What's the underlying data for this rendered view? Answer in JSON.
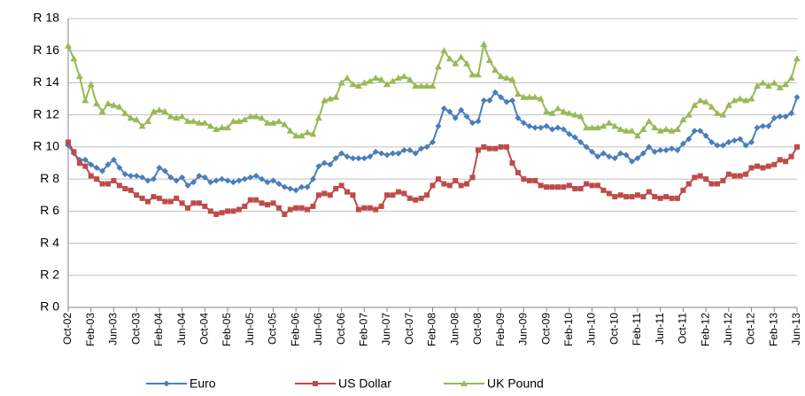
{
  "chart_data": {
    "type": "line",
    "categories": [
      "Oct-02",
      null,
      null,
      null,
      "Feb-03",
      null,
      null,
      null,
      "Jun-03",
      null,
      null,
      null,
      "Oct-03",
      null,
      null,
      null,
      "Feb-04",
      null,
      null,
      null,
      "Jun-04",
      null,
      null,
      null,
      "Oct-04",
      null,
      null,
      null,
      "Feb-05",
      null,
      null,
      null,
      "Jun-05",
      null,
      null,
      null,
      "Oct-05",
      null,
      null,
      null,
      "Feb-06",
      null,
      null,
      null,
      "Jun-06",
      null,
      null,
      null,
      "Oct-06",
      null,
      null,
      null,
      "Feb-07",
      null,
      null,
      null,
      "Jun-07",
      null,
      null,
      null,
      "Oct-07",
      null,
      null,
      null,
      "Feb-08",
      null,
      null,
      null,
      "Jun-08",
      null,
      null,
      null,
      "Oct-08",
      null,
      null,
      null,
      "Feb-09",
      null,
      null,
      null,
      "Jun-09",
      null,
      null,
      null,
      "Oct-09",
      null,
      null,
      null,
      "Feb-10",
      null,
      null,
      null,
      "Jun-10",
      null,
      null,
      null,
      "Oct-10",
      null,
      null,
      null,
      "Feb-11",
      null,
      null,
      null,
      "Jun-11",
      null,
      null,
      null,
      "Oct-11",
      null,
      null,
      null,
      "Feb-12",
      null,
      null,
      null,
      "Jun-12",
      null,
      null,
      null,
      "Oct-12",
      null,
      null,
      null,
      "Feb-13",
      null,
      null,
      null,
      "Jun-13"
    ],
    "series": [
      {
        "name": "Euro",
        "color": "#4a7ebb",
        "marker": "diamond",
        "values": [
          10.1,
          9.6,
          9.2,
          9.2,
          8.9,
          8.7,
          8.5,
          8.9,
          9.2,
          8.7,
          8.3,
          8.2,
          8.2,
          8.1,
          7.9,
          8.0,
          8.7,
          8.5,
          8.1,
          7.9,
          8.1,
          7.6,
          7.8,
          8.2,
          8.1,
          7.8,
          7.9,
          8.0,
          7.9,
          7.8,
          7.9,
          8.0,
          8.1,
          8.2,
          8.0,
          7.8,
          7.9,
          7.7,
          7.5,
          7.4,
          7.3,
          7.5,
          7.5,
          8.0,
          8.8,
          9.0,
          8.9,
          9.3,
          9.6,
          9.4,
          9.3,
          9.3,
          9.3,
          9.4,
          9.7,
          9.6,
          9.5,
          9.6,
          9.6,
          9.8,
          9.8,
          9.6,
          9.9,
          10.0,
          10.3,
          11.3,
          12.4,
          12.2,
          11.8,
          12.3,
          11.9,
          11.5,
          11.6,
          12.9,
          12.9,
          13.4,
          13.1,
          12.8,
          12.9,
          11.8,
          11.5,
          11.3,
          11.2,
          11.2,
          11.3,
          11.1,
          11.2,
          11.1,
          10.8,
          10.6,
          10.3,
          10.0,
          9.7,
          9.4,
          9.6,
          9.4,
          9.3,
          9.6,
          9.5,
          9.1,
          9.3,
          9.6,
          10.0,
          9.7,
          9.8,
          9.8,
          9.9,
          9.8,
          10.2,
          10.5,
          11.0,
          11.0,
          10.7,
          10.3,
          10.1,
          10.1,
          10.3,
          10.4,
          10.5,
          10.1,
          10.3,
          11.2,
          11.3,
          11.3,
          11.8,
          11.9,
          11.9,
          12.1,
          13.1
        ]
      },
      {
        "name": "US Dollar",
        "color": "#be4b48",
        "marker": "square",
        "values": [
          10.3,
          9.7,
          9.0,
          8.8,
          8.2,
          8.0,
          7.7,
          7.7,
          7.9,
          7.6,
          7.4,
          7.3,
          7.0,
          6.8,
          6.6,
          6.9,
          6.8,
          6.6,
          6.6,
          6.8,
          6.5,
          6.2,
          6.5,
          6.5,
          6.3,
          6.0,
          5.8,
          5.9,
          6.0,
          6.0,
          6.1,
          6.3,
          6.7,
          6.7,
          6.5,
          6.4,
          6.5,
          6.2,
          5.8,
          6.1,
          6.2,
          6.2,
          6.1,
          6.3,
          7.0,
          7.1,
          7.0,
          7.4,
          7.6,
          7.2,
          7.0,
          6.1,
          6.2,
          6.2,
          6.1,
          6.3,
          7.0,
          7.0,
          7.2,
          7.1,
          6.8,
          6.7,
          6.8,
          7.0,
          7.6,
          8.0,
          7.7,
          7.6,
          7.9,
          7.6,
          7.7,
          8.1,
          9.8,
          10.0,
          9.9,
          9.9,
          10.0,
          10.0,
          9.0,
          8.4,
          8.0,
          7.9,
          7.9,
          7.6,
          7.5,
          7.5,
          7.5,
          7.5,
          7.6,
          7.4,
          7.4,
          7.7,
          7.6,
          7.6,
          7.3,
          7.1,
          6.9,
          7.0,
          6.9,
          6.9,
          7.0,
          6.9,
          7.2,
          6.9,
          6.8,
          6.9,
          6.8,
          6.8,
          7.3,
          7.7,
          8.1,
          8.2,
          8.0,
          7.7,
          7.7,
          7.9,
          8.3,
          8.2,
          8.2,
          8.3,
          8.7,
          8.8,
          8.7,
          8.8,
          8.9,
          9.2,
          9.1,
          9.4,
          10.0
        ]
      },
      {
        "name": "UK Pound",
        "color": "#98b954",
        "marker": "triangle",
        "values": [
          16.3,
          15.5,
          14.4,
          12.9,
          13.9,
          12.7,
          12.2,
          12.7,
          12.6,
          12.5,
          12.1,
          11.8,
          11.7,
          11.3,
          11.6,
          12.2,
          12.3,
          12.2,
          11.9,
          11.8,
          11.9,
          11.6,
          11.6,
          11.5,
          11.5,
          11.3,
          11.1,
          11.2,
          11.2,
          11.6,
          11.6,
          11.7,
          11.9,
          11.9,
          11.8,
          11.5,
          11.5,
          11.6,
          11.4,
          11.0,
          10.7,
          10.7,
          10.9,
          10.8,
          11.8,
          12.9,
          13.0,
          13.1,
          14.0,
          14.3,
          13.9,
          13.8,
          14.0,
          14.1,
          14.3,
          14.2,
          13.9,
          14.1,
          14.3,
          14.4,
          14.2,
          13.8,
          13.8,
          13.8,
          13.8,
          15.0,
          16.0,
          15.5,
          15.2,
          15.6,
          15.2,
          14.5,
          14.5,
          16.4,
          15.4,
          14.8,
          14.4,
          14.3,
          14.2,
          13.3,
          13.1,
          13.1,
          13.1,
          13.0,
          12.2,
          12.1,
          12.4,
          12.2,
          12.1,
          12.0,
          11.9,
          11.2,
          11.2,
          11.2,
          11.3,
          11.5,
          11.3,
          11.1,
          11.0,
          11.0,
          10.7,
          11.1,
          11.6,
          11.2,
          11.0,
          11.1,
          11.0,
          11.1,
          11.7,
          12.0,
          12.6,
          12.9,
          12.8,
          12.5,
          12.1,
          12.0,
          12.6,
          12.9,
          13.0,
          12.9,
          13.0,
          13.8,
          14.0,
          13.8,
          14.0,
          13.7,
          13.9,
          14.3,
          15.5
        ]
      }
    ],
    "ylim": [
      0,
      18
    ],
    "yticks": [
      {
        "value": 0,
        "label": "R 0"
      },
      {
        "value": 2,
        "label": "R 2"
      },
      {
        "value": 4,
        "label": "R 4"
      },
      {
        "value": 6,
        "label": "R 6"
      },
      {
        "value": 8,
        "label": "R 8"
      },
      {
        "value": 10,
        "label": "R 10"
      },
      {
        "value": 12,
        "label": "R 12"
      },
      {
        "value": 14,
        "label": "R 14"
      },
      {
        "value": 16,
        "label": "R 16"
      },
      {
        "value": 18,
        "label": "R 18"
      }
    ],
    "grid": true,
    "legend": "bottom"
  }
}
